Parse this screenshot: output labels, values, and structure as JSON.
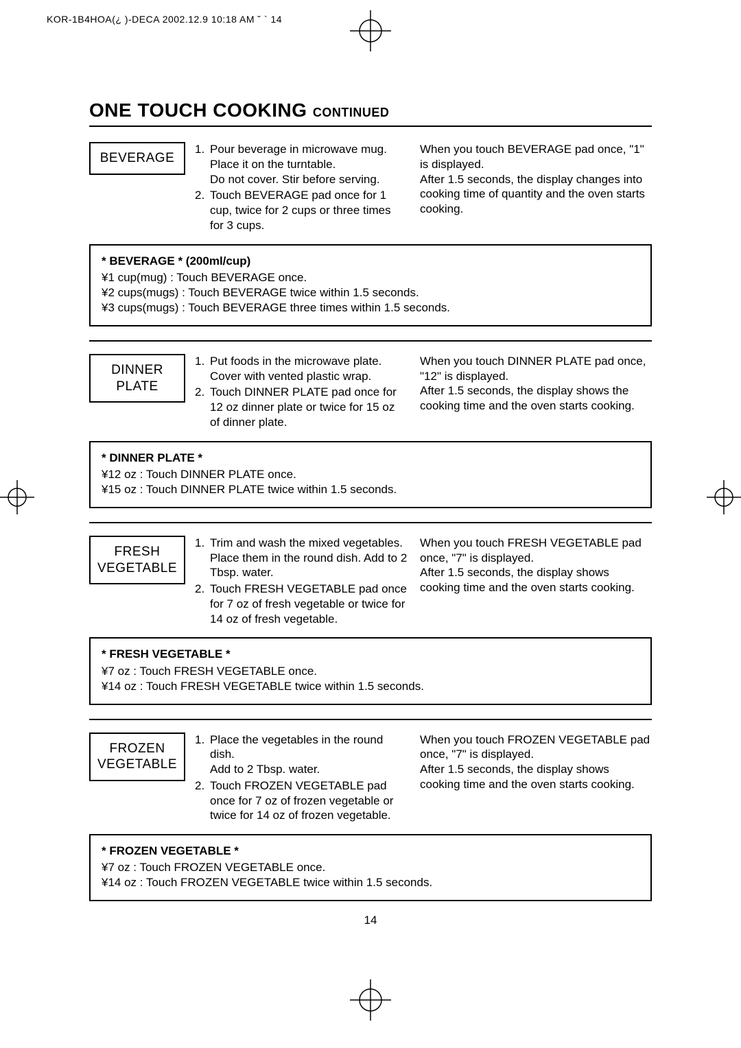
{
  "header": "KOR-1B4HOA(¿ )-DECA 2002.12.9 10:18 AM ˘  `  14",
  "title_main": "ONE TOUCH COOKING ",
  "title_sub": "CONTINUED",
  "page_number": "14",
  "sections": [
    {
      "label": "BEVERAGE",
      "steps": [
        "Pour beverage in microwave mug. Place it on the turntable.\nDo not cover. Stir before serving.",
        "Touch BEVERAGE pad once for 1 cup, twice for 2 cups or three times for 3 cups."
      ],
      "note": "When you touch BEVERAGE pad once, \"1\" is displayed.\nAfter 1.5 seconds, the display changes into cooking time of quantity and the oven starts cooking.",
      "detail_title": "* BEVERAGE * (200ml/cup)",
      "detail_lines": [
        "¥1 cup(mug) : Touch BEVERAGE once.",
        "¥2 cups(mugs) : Touch BEVERAGE twice within 1.5 seconds.",
        "¥3 cups(mugs) : Touch BEVERAGE three times within 1.5 seconds."
      ]
    },
    {
      "label": "DINNER\nPLATE",
      "steps": [
        "Put foods in the microwave plate. Cover with vented plastic wrap.",
        "Touch DINNER PLATE pad once for 12 oz dinner plate or twice for 15 oz of dinner plate."
      ],
      "note": "When you touch DINNER PLATE pad once, \"12\" is displayed.\nAfter 1.5 seconds, the display shows the cooking time and the oven starts cooking.",
      "detail_title": "* DINNER PLATE *",
      "detail_lines": [
        "¥12 oz : Touch DINNER PLATE once.",
        "¥15 oz : Touch DINNER PLATE twice within 1.5 seconds."
      ]
    },
    {
      "label": "FRESH\nVEGETABLE",
      "steps": [
        "Trim and wash the mixed vegetables.\nPlace them in the round dish. Add to 2 Tbsp. water.",
        "Touch FRESH VEGETABLE pad once for 7 oz of fresh vegetable or twice for 14 oz of fresh vegetable."
      ],
      "note": "When you touch FRESH VEGETABLE pad once, \"7\" is displayed.\nAfter 1.5 seconds, the display shows cooking time and the oven starts cooking.",
      "detail_title": "* FRESH VEGETABLE *",
      "detail_lines": [
        "¥7 oz : Touch FRESH VEGETABLE once.",
        "¥14 oz : Touch FRESH VEGETABLE twice within 1.5 seconds."
      ]
    },
    {
      "label": "FROZEN\nVEGETABLE",
      "steps": [
        "Place the vegetables in the round dish.\nAdd to 2 Tbsp. water.",
        "Touch FROZEN VEGETABLE pad once for 7 oz of frozen vegetable or twice for 14 oz of frozen vegetable."
      ],
      "note": "When you touch FROZEN VEGETABLE pad once, \"7\" is displayed.\nAfter 1.5 seconds, the display shows cooking time and the oven starts cooking.",
      "detail_title": "* FROZEN VEGETABLE *",
      "detail_lines": [
        "¥7 oz : Touch FROZEN VEGETABLE once.",
        "¥14 oz : Touch FROZEN VEGETABLE twice within 1.5 seconds."
      ]
    }
  ]
}
